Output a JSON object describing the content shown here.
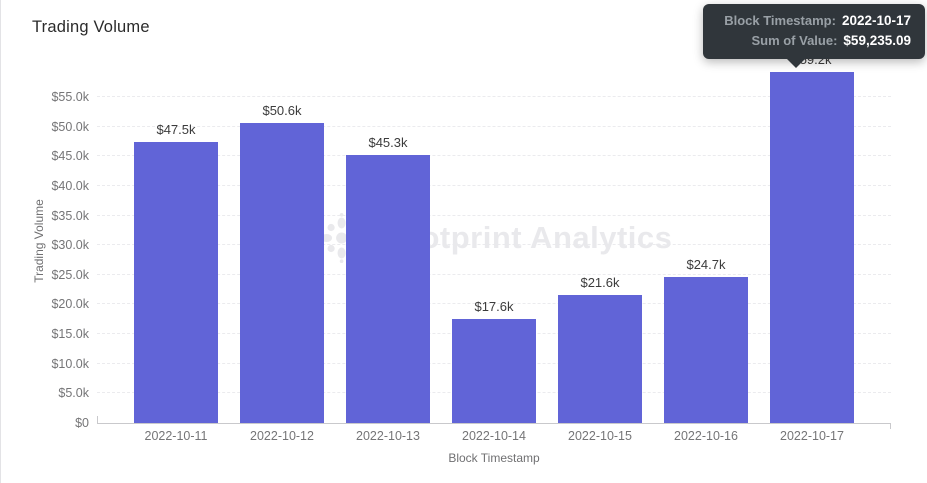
{
  "page": {
    "title": "Trading Volume"
  },
  "chart_data": {
    "type": "bar",
    "title": "Trading Volume",
    "xlabel": "Block Timestamp",
    "ylabel": "Trading Volume",
    "categories": [
      "2022-10-11",
      "2022-10-12",
      "2022-10-13",
      "2022-10-14",
      "2022-10-15",
      "2022-10-16",
      "2022-10-17"
    ],
    "values": [
      47500,
      50600,
      45300,
      17600,
      21600,
      24700,
      59235.09
    ],
    "bar_labels": [
      "$47.5k",
      "$50.6k",
      "$45.3k",
      "$17.6k",
      "$21.6k",
      "$24.7k",
      "$59.2k"
    ],
    "y_ticks": [
      {
        "label": "$0",
        "value": 0
      },
      {
        "label": "$5.0k",
        "value": 5000
      },
      {
        "label": "$10.0k",
        "value": 10000
      },
      {
        "label": "$15.0k",
        "value": 15000
      },
      {
        "label": "$20.0k",
        "value": 20000
      },
      {
        "label": "$25.0k",
        "value": 25000
      },
      {
        "label": "$30.0k",
        "value": 30000
      },
      {
        "label": "$35.0k",
        "value": 35000
      },
      {
        "label": "$40.0k",
        "value": 40000
      },
      {
        "label": "$45.0k",
        "value": 45000
      },
      {
        "label": "$50.0k",
        "value": 50000
      },
      {
        "label": "$55.0k",
        "value": 55000
      }
    ],
    "ylim": [
      0,
      61250
    ],
    "grid": "horizontal-dashed",
    "legend": "none",
    "bar_color": "#6164d7",
    "highlighted_category": "2022-10-17"
  },
  "tooltip": {
    "rows": [
      {
        "label": "Block Timestamp:",
        "value": "2022-10-17"
      },
      {
        "label": "Sum of Value:",
        "value": "$59,235.09"
      }
    ]
  },
  "watermark": {
    "text": "Footprint Analytics"
  },
  "colors": {
    "bar": "#6164d7",
    "tooltip_bg": "#30363b",
    "axis_text": "#757577",
    "grid_line": "#ebebee",
    "watermark": "#e9e9ec"
  }
}
